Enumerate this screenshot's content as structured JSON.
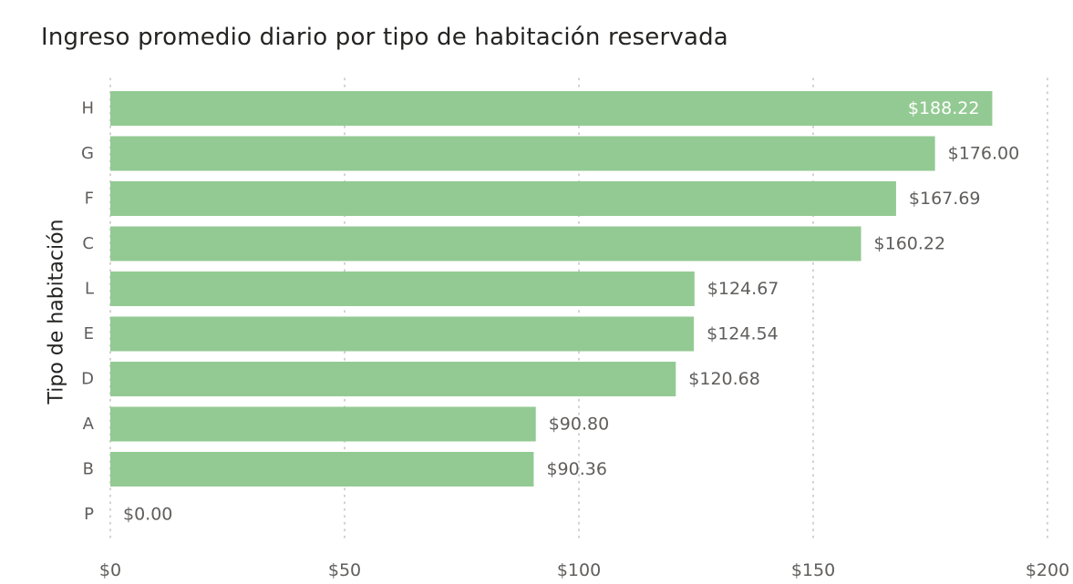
{
  "chart_data": {
    "type": "bar",
    "orientation": "horizontal",
    "title": "Ingreso promedio diario por tipo de habitación reservada",
    "ylabel": "Tipo de habitación",
    "xlabel": "",
    "categories": [
      "H",
      "G",
      "F",
      "C",
      "L",
      "E",
      "D",
      "A",
      "B",
      "P"
    ],
    "values": [
      188.22,
      176.0,
      167.69,
      160.22,
      124.67,
      124.54,
      120.68,
      90.8,
      90.36,
      0.0
    ],
    "data_labels": [
      "$188.22",
      "$176.00",
      "$167.69",
      "$160.22",
      "$124.67",
      "$124.54",
      "$120.68",
      "$90.80",
      "$90.36",
      "$0.00"
    ],
    "xlim": [
      0,
      200
    ],
    "x_ticks": [
      0,
      50,
      100,
      150,
      200
    ],
    "x_tick_labels": [
      "$0",
      "$50",
      "$100",
      "$150",
      "$200"
    ],
    "grid": true,
    "legend": "none",
    "bar_color": "#93ca93",
    "label_color_outside": "#605e5c",
    "label_color_inside": "#ffffff",
    "grid_color": "#c8c6c4"
  }
}
